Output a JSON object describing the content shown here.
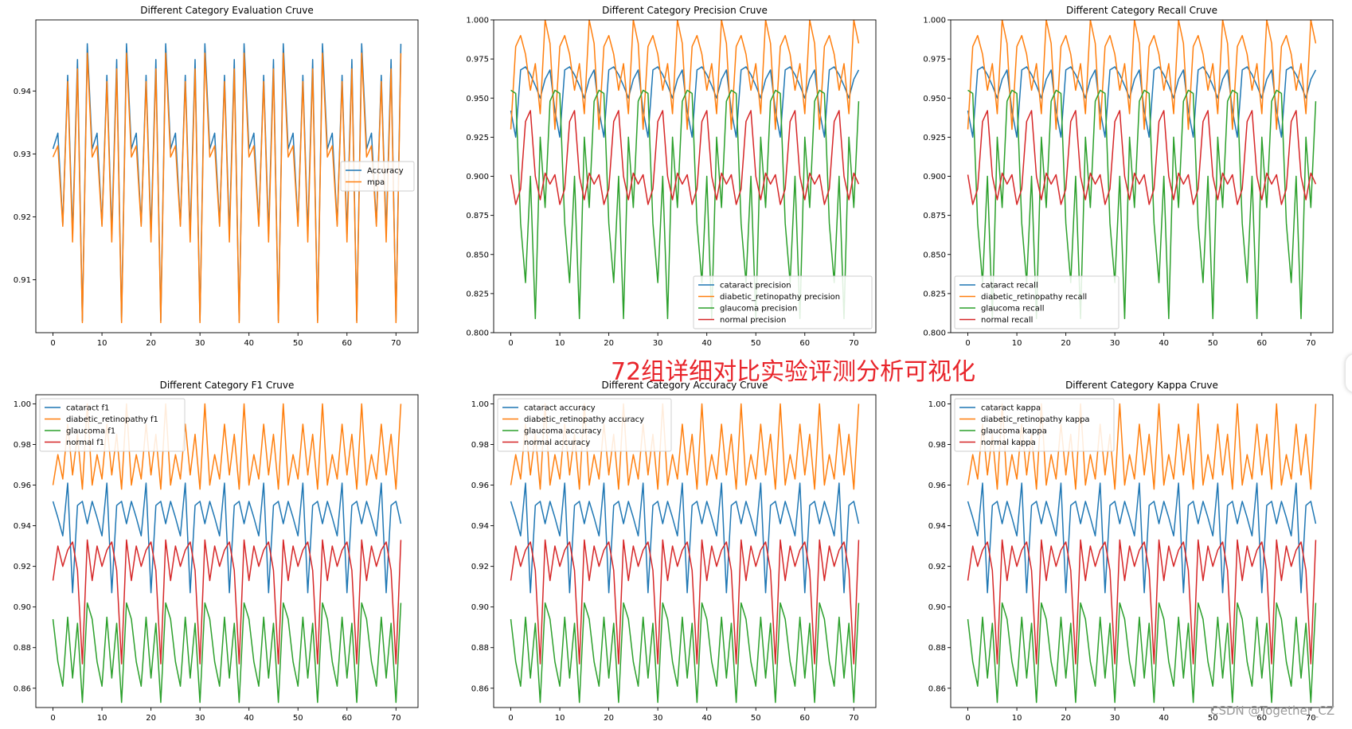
{
  "overlay_title": "72组详细对比实验评测分析可视化",
  "watermark": "CSDN @Together_CZ",
  "colors": {
    "blue": "#1f77b4",
    "orange": "#ff7f0e",
    "green": "#2ca02c",
    "red": "#d62728",
    "overlay": "#e8252b"
  },
  "chart_data": [
    {
      "type": "line",
      "title": "Different Category Evaluation Cruve",
      "xlabel": "",
      "ylabel": "",
      "xlim": [
        -3.5,
        74.5
      ],
      "ylim": [
        0.9016,
        0.9513
      ],
      "xticks": [
        0,
        10,
        20,
        30,
        40,
        50,
        60,
        70
      ],
      "yticks": [
        0.91,
        0.92,
        0.93,
        0.94
      ],
      "grid": false,
      "legend_position": "center-right",
      "series": [
        {
          "name": "Accuracy",
          "color": "#1f77b4",
          "cycle": [
            0.9308,
            0.9333,
            0.9188,
            0.9425,
            0.9172,
            0.945,
            0.9035,
            0.9475
          ],
          "length": 72
        },
        {
          "name": "mpa",
          "color": "#ff7f0e",
          "cycle": [
            0.9295,
            0.9313,
            0.9185,
            0.9415,
            0.916,
            0.9435,
            0.9032,
            0.946
          ],
          "length": 72
        }
      ]
    },
    {
      "type": "line",
      "title": "Different Category Precision Cruve",
      "xlabel": "",
      "ylabel": "",
      "xlim": [
        -3.5,
        74.5
      ],
      "ylim": [
        0.8,
        1.0
      ],
      "xticks": [
        0,
        10,
        20,
        30,
        40,
        50,
        60,
        70
      ],
      "yticks": [
        0.8,
        0.825,
        0.85,
        0.875,
        0.9,
        0.925,
        0.95,
        0.975,
        1.0
      ],
      "grid": false,
      "legend_position": "lower-right",
      "series": [
        {
          "name": "cataract precision",
          "color": "#1f77b4",
          "cycle": [
            0.942,
            0.925,
            0.968,
            0.97,
            0.965,
            0.958,
            0.95,
            0.962,
            0.968
          ],
          "length": 72
        },
        {
          "name": "diabetic_retinopathy precision",
          "color": "#ff7f0e",
          "cycle": [
            0.93,
            0.983,
            0.99,
            0.978,
            0.955,
            0.972,
            0.94,
            1.0,
            0.985
          ],
          "length": 72
        },
        {
          "name": "glaucoma precision",
          "color": "#2ca02c",
          "cycle": [
            0.955,
            0.953,
            0.87,
            0.832,
            0.9,
            0.809,
            0.925,
            0.88,
            0.948
          ],
          "length": 72
        },
        {
          "name": "normal precision",
          "color": "#d62728",
          "cycle": [
            0.901,
            0.882,
            0.892,
            0.935,
            0.942,
            0.9,
            0.885,
            0.902,
            0.895
          ],
          "length": 72
        }
      ]
    },
    {
      "type": "line",
      "title": "Different Category Recall Cruve",
      "xlabel": "",
      "ylabel": "",
      "xlim": [
        -3.5,
        74.5
      ],
      "ylim": [
        0.8,
        1.0
      ],
      "xticks": [
        0,
        10,
        20,
        30,
        40,
        50,
        60,
        70
      ],
      "yticks": [
        0.8,
        0.825,
        0.85,
        0.875,
        0.9,
        0.925,
        0.95,
        0.975,
        1.0
      ],
      "grid": false,
      "legend_position": "lower-left",
      "series": [
        {
          "name": "cataract recall",
          "color": "#1f77b4",
          "cycle": [
            0.942,
            0.925,
            0.968,
            0.97,
            0.965,
            0.958,
            0.95,
            0.962,
            0.968
          ],
          "length": 72
        },
        {
          "name": "diabetic_retinopathy recall",
          "color": "#ff7f0e",
          "cycle": [
            0.93,
            0.983,
            0.99,
            0.978,
            0.955,
            0.972,
            0.94,
            1.0,
            0.985
          ],
          "length": 72
        },
        {
          "name": "glaucoma recall",
          "color": "#2ca02c",
          "cycle": [
            0.955,
            0.953,
            0.87,
            0.832,
            0.9,
            0.809,
            0.925,
            0.88,
            0.948
          ],
          "length": 72
        },
        {
          "name": "normal recall",
          "color": "#d62728",
          "cycle": [
            0.901,
            0.882,
            0.892,
            0.935,
            0.942,
            0.9,
            0.885,
            0.902,
            0.895
          ],
          "length": 72
        }
      ]
    },
    {
      "type": "line",
      "title": "Different Category F1 Cruve",
      "xlabel": "",
      "ylabel": "",
      "xlim": [
        -3.5,
        74.5
      ],
      "ylim": [
        0.8505,
        1.0045
      ],
      "xticks": [
        0,
        10,
        20,
        30,
        40,
        50,
        60,
        70
      ],
      "yticks": [
        0.86,
        0.88,
        0.9,
        0.92,
        0.94,
        0.96,
        0.98,
        1.0
      ],
      "grid": false,
      "legend_position": "upper-left",
      "series": [
        {
          "name": "cataract f1",
          "color": "#1f77b4",
          "cycle": [
            0.952,
            0.944,
            0.935,
            0.961,
            0.907,
            0.95,
            0.952,
            0.941
          ],
          "length": 72
        },
        {
          "name": "diabetic_retinopathy f1",
          "color": "#ff7f0e",
          "cycle": [
            0.96,
            0.975,
            0.963,
            0.99,
            0.965,
            0.985,
            0.958,
            1.0
          ],
          "length": 72
        },
        {
          "name": "glaucoma f1",
          "color": "#2ca02c",
          "cycle": [
            0.894,
            0.873,
            0.861,
            0.895,
            0.865,
            0.892,
            0.853,
            0.902
          ],
          "length": 72
        },
        {
          "name": "normal f1",
          "color": "#d62728",
          "cycle": [
            0.913,
            0.93,
            0.92,
            0.928,
            0.932,
            0.918,
            0.872,
            0.933
          ],
          "length": 72
        }
      ]
    },
    {
      "type": "line",
      "title": "Different Category Accuracy Cruve",
      "xlabel": "",
      "ylabel": "",
      "xlim": [
        -3.5,
        74.5
      ],
      "ylim": [
        0.8505,
        1.0045
      ],
      "xticks": [
        0,
        10,
        20,
        30,
        40,
        50,
        60,
        70
      ],
      "yticks": [
        0.86,
        0.88,
        0.9,
        0.92,
        0.94,
        0.96,
        0.98,
        1.0
      ],
      "grid": false,
      "legend_position": "upper-left",
      "series": [
        {
          "name": "cataract accuracy",
          "color": "#1f77b4",
          "cycle": [
            0.952,
            0.944,
            0.935,
            0.961,
            0.907,
            0.95,
            0.952,
            0.941
          ],
          "length": 72
        },
        {
          "name": "diabetic_retinopathy accuracy",
          "color": "#ff7f0e",
          "cycle": [
            0.96,
            0.975,
            0.963,
            0.99,
            0.965,
            0.985,
            0.958,
            1.0
          ],
          "length": 72
        },
        {
          "name": "glaucoma accuracy",
          "color": "#2ca02c",
          "cycle": [
            0.894,
            0.873,
            0.861,
            0.895,
            0.865,
            0.892,
            0.853,
            0.902
          ],
          "length": 72
        },
        {
          "name": "normal accuracy",
          "color": "#d62728",
          "cycle": [
            0.913,
            0.93,
            0.92,
            0.928,
            0.932,
            0.918,
            0.872,
            0.933
          ],
          "length": 72
        }
      ]
    },
    {
      "type": "line",
      "title": "Different Category Kappa Cruve",
      "xlabel": "",
      "ylabel": "",
      "xlim": [
        -3.5,
        74.5
      ],
      "ylim": [
        0.8505,
        1.0045
      ],
      "xticks": [
        0,
        10,
        20,
        30,
        40,
        50,
        60,
        70
      ],
      "yticks": [
        0.86,
        0.88,
        0.9,
        0.92,
        0.94,
        0.96,
        0.98,
        1.0
      ],
      "grid": false,
      "legend_position": "upper-left",
      "series": [
        {
          "name": "cataract kappa",
          "color": "#1f77b4",
          "cycle": [
            0.952,
            0.944,
            0.935,
            0.961,
            0.907,
            0.95,
            0.952,
            0.941
          ],
          "length": 72
        },
        {
          "name": "diabetic_retinopathy kappa",
          "color": "#ff7f0e",
          "cycle": [
            0.96,
            0.975,
            0.963,
            0.99,
            0.965,
            0.985,
            0.958,
            1.0
          ],
          "length": 72
        },
        {
          "name": "glaucoma kappa",
          "color": "#2ca02c",
          "cycle": [
            0.894,
            0.873,
            0.861,
            0.895,
            0.865,
            0.892,
            0.853,
            0.902
          ],
          "length": 72
        },
        {
          "name": "normal kappa",
          "color": "#d62728",
          "cycle": [
            0.913,
            0.93,
            0.92,
            0.928,
            0.932,
            0.918,
            0.872,
            0.933
          ],
          "length": 72
        }
      ]
    }
  ]
}
